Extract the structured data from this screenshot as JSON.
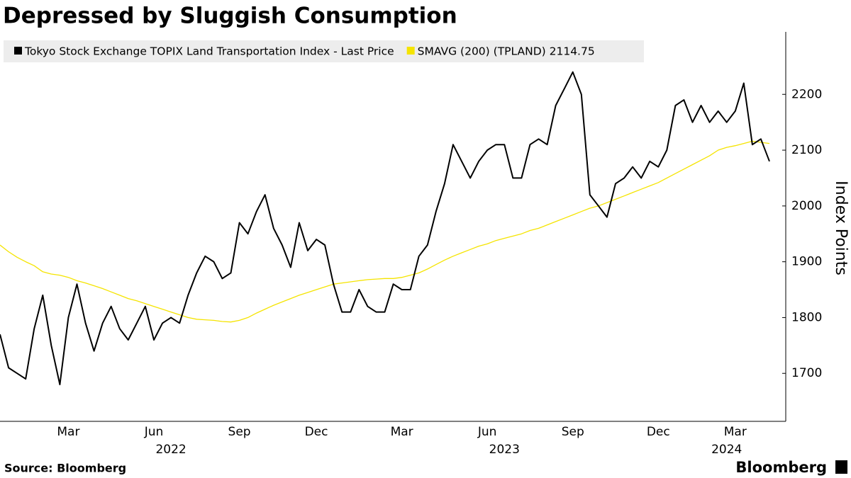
{
  "chart_data": {
    "type": "line",
    "title": "Depressed by Sluggish Consumption",
    "y_label": "Index Points",
    "source": "Source: Bloomberg",
    "brand": "Bloomberg",
    "categories": [
      null,
      null,
      null,
      null,
      null,
      null,
      null,
      null,
      "Mar",
      null,
      null,
      null,
      null,
      null,
      null,
      null,
      null,
      null,
      "Jun",
      null,
      null,
      null,
      null,
      null,
      null,
      null,
      null,
      null,
      "Sep",
      null,
      null,
      null,
      null,
      null,
      null,
      null,
      null,
      "Dec",
      null,
      null,
      null,
      null,
      null,
      null,
      null,
      null,
      null,
      "Mar",
      null,
      null,
      null,
      null,
      null,
      null,
      null,
      null,
      null,
      "Jun",
      null,
      null,
      null,
      null,
      null,
      null,
      null,
      null,
      null,
      "Sep",
      null,
      null,
      null,
      null,
      null,
      null,
      null,
      null,
      null,
      "Dec",
      null,
      null,
      null,
      null,
      null,
      null,
      null,
      null,
      "Mar",
      null,
      null,
      null,
      null
    ],
    "years": [
      {
        "value": 20,
        "label": "2022"
      },
      {
        "value": 59,
        "label": "2023"
      },
      {
        "value": 85,
        "label": "2024"
      }
    ],
    "series": [
      {
        "name": "Tokyo Stock Exchange TOPIX Land Transportation Index - Last Price",
        "color": "#000000",
        "values": [
          1770,
          1710,
          1700,
          1690,
          1780,
          1840,
          1750,
          1680,
          1800,
          1860,
          1790,
          1740,
          1790,
          1820,
          1780,
          1760,
          1790,
          1820,
          1760,
          1790,
          1800,
          1790,
          1840,
          1880,
          1910,
          1900,
          1870,
          1880,
          1970,
          1950,
          1990,
          2020,
          1960,
          1930,
          1890,
          1970,
          1920,
          1940,
          1930,
          1860,
          1810,
          1810,
          1850,
          1820,
          1810,
          1810,
          1860,
          1850,
          1850,
          1910,
          1930,
          1990,
          2040,
          2110,
          2080,
          2050,
          2080,
          2100,
          2110,
          2110,
          2050,
          2050,
          2110,
          2120,
          2110,
          2180,
          2210,
          2240,
          2200,
          2020,
          2000,
          1980,
          2040,
          2050,
          2070,
          2050,
          2080,
          2070,
          2100,
          2180,
          2190,
          2150,
          2180,
          2150,
          2170,
          2150,
          2170,
          2220,
          2110,
          2120,
          2080
        ]
      },
      {
        "name": "SMAVG (200) (TPLAND) 2114.75",
        "color": "#f5e400",
        "values": [
          1930,
          1918,
          1908,
          1900,
          1893,
          1882,
          1878,
          1876,
          1872,
          1866,
          1862,
          1857,
          1852,
          1846,
          1840,
          1834,
          1830,
          1825,
          1820,
          1815,
          1810,
          1805,
          1800,
          1797,
          1796,
          1795,
          1793,
          1792,
          1795,
          1800,
          1808,
          1815,
          1822,
          1828,
          1834,
          1840,
          1845,
          1850,
          1855,
          1860,
          1862,
          1864,
          1866,
          1868,
          1869,
          1870,
          1870,
          1872,
          1876,
          1880,
          1887,
          1895,
          1903,
          1910,
          1916,
          1922,
          1928,
          1932,
          1938,
          1942,
          1946,
          1950,
          1956,
          1960,
          1966,
          1972,
          1978,
          1984,
          1990,
          1996,
          2000,
          2006,
          2012,
          2018,
          2024,
          2030,
          2036,
          2042,
          2050,
          2058,
          2066,
          2074,
          2082,
          2090,
          2100,
          2105,
          2108,
          2112,
          2116,
          2114,
          2112
        ]
      }
    ],
    "ylim": [
      1614,
      2312
    ],
    "yticks": [
      1700,
      1800,
      1900,
      2000,
      2100,
      2200
    ],
    "legend": "top-left"
  }
}
